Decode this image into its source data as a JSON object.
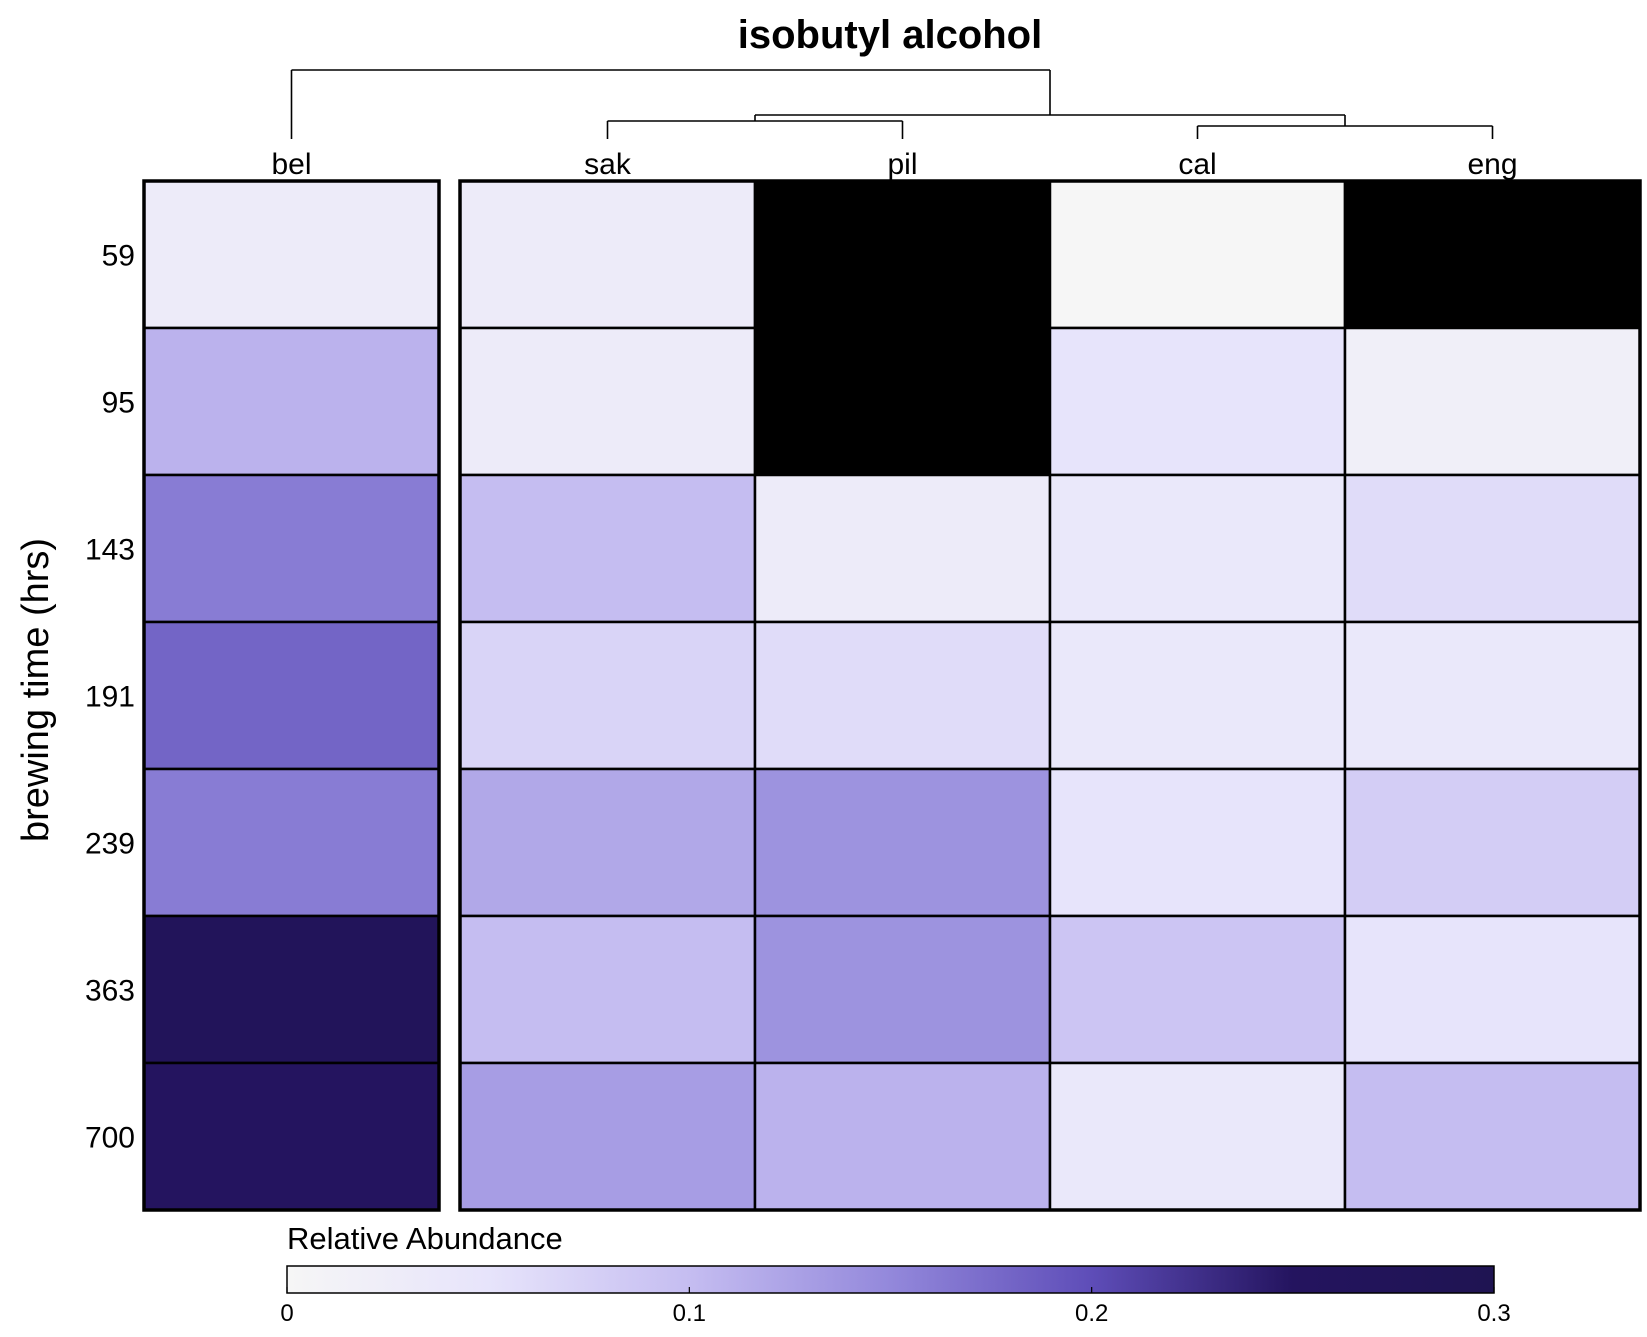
{
  "chart_data": {
    "type": "heatmap",
    "title": "isobutyl alcohol",
    "xlabel": "",
    "ylabel": "brewing time (hrs)",
    "columns": [
      "bel",
      "sak",
      "pil",
      "cal",
      "eng"
    ],
    "column_groups": [
      [
        "bel"
      ],
      [
        "sak",
        "pil",
        "cal",
        "eng"
      ]
    ],
    "rows": [
      "59",
      "95",
      "143",
      "191",
      "239",
      "363",
      "700"
    ],
    "values": [
      [
        0.03,
        0.03,
        0.4,
        0.0,
        0.4
      ],
      [
        0.11,
        0.03,
        0.4,
        0.05,
        0.02
      ],
      [
        0.16,
        0.1,
        0.03,
        0.04,
        0.06
      ],
      [
        0.18,
        0.07,
        0.06,
        0.04,
        0.04
      ],
      [
        0.16,
        0.12,
        0.14,
        0.05,
        0.08
      ],
      [
        0.27,
        0.1,
        0.14,
        0.09,
        0.05
      ],
      [
        0.25,
        0.13,
        0.11,
        0.04,
        0.1
      ]
    ],
    "colorbar": {
      "title": "Relative Abundance",
      "range": [
        0,
        0.3
      ],
      "ticks": [
        0,
        0.1,
        0.2,
        0.3
      ],
      "tick_labels": [
        "0",
        "0.1",
        "0.2",
        "0.3"
      ],
      "colors": [
        "#f6f6f6",
        "#e7e4fb",
        "#c5bdf1",
        "#9388db",
        "#5e4db8",
        "#24145f",
        "#1f1452"
      ]
    },
    "over_range_color": "#000000",
    "dendrogram": true,
    "grid": false
  }
}
